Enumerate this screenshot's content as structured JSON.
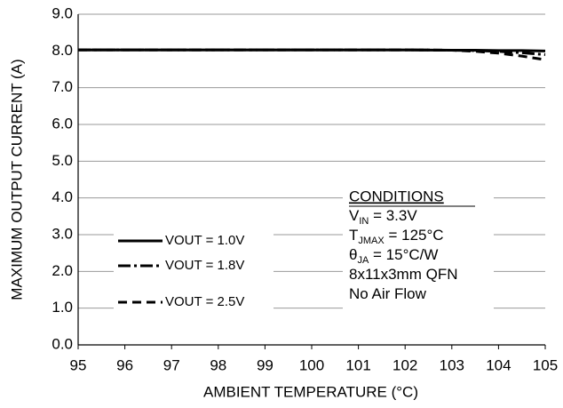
{
  "chart_data": {
    "type": "line",
    "xlabel": "AMBIENT TEMPERATURE (°C)",
    "ylabel": "MAXIMUM OUTPUT  CURRENT (A)",
    "x": [
      95,
      96,
      97,
      98,
      99,
      100,
      101,
      102,
      103,
      103.5,
      104,
      104.5,
      105
    ],
    "series": [
      {
        "name": "VOUT = 1.0V",
        "color": "#000000",
        "linestyle": "solid",
        "values": [
          8.03,
          8.03,
          8.03,
          8.03,
          8.03,
          8.03,
          8.03,
          8.03,
          8.02,
          8.02,
          8.01,
          8.01,
          8.0
        ]
      },
      {
        "name": "VOUT = 1.8V",
        "color": "#000000",
        "linestyle": "dashdot",
        "values": [
          8.03,
          8.03,
          8.03,
          8.03,
          8.03,
          8.03,
          8.03,
          8.03,
          8.02,
          8.01,
          7.99,
          7.95,
          7.9
        ]
      },
      {
        "name": "VOUT = 2.5V",
        "color": "#000000",
        "linestyle": "dashed",
        "values": [
          8.03,
          8.03,
          8.03,
          8.03,
          8.03,
          8.03,
          8.03,
          8.03,
          8.02,
          7.99,
          7.94,
          7.86,
          7.76
        ]
      }
    ],
    "xlim": [
      95,
      105
    ],
    "xticks": [
      95,
      96,
      97,
      98,
      99,
      100,
      101,
      102,
      103,
      104,
      105
    ],
    "ylim": [
      0,
      9
    ],
    "yticks": [
      {
        "value": 0,
        "label": "0.0"
      },
      {
        "value": 1,
        "label": "1.0"
      },
      {
        "value": 2,
        "label": "2.0"
      },
      {
        "value": 3,
        "label": "3.0"
      },
      {
        "value": 4,
        "label": "4.0"
      },
      {
        "value": 5,
        "label": "5.0"
      },
      {
        "value": 6,
        "label": "6.0"
      },
      {
        "value": 7,
        "label": "7.0"
      },
      {
        "value": 8,
        "label": "8.0"
      },
      {
        "value": 9,
        "label": "9.0"
      }
    ],
    "grid": true,
    "conditions": {
      "title": "CONDITIONS",
      "lines": [
        {
          "main": "V",
          "sub": "IN",
          "rest": " = 3.3V"
        },
        {
          "main": "T",
          "sub": "JMAX",
          "rest": " = 125°C"
        },
        {
          "main": "θ",
          "sub": "JA",
          "rest": " = 15°C/W"
        },
        {
          "main": "8x11x3mm QFN"
        },
        {
          "main": "No Air Flow"
        }
      ]
    }
  }
}
